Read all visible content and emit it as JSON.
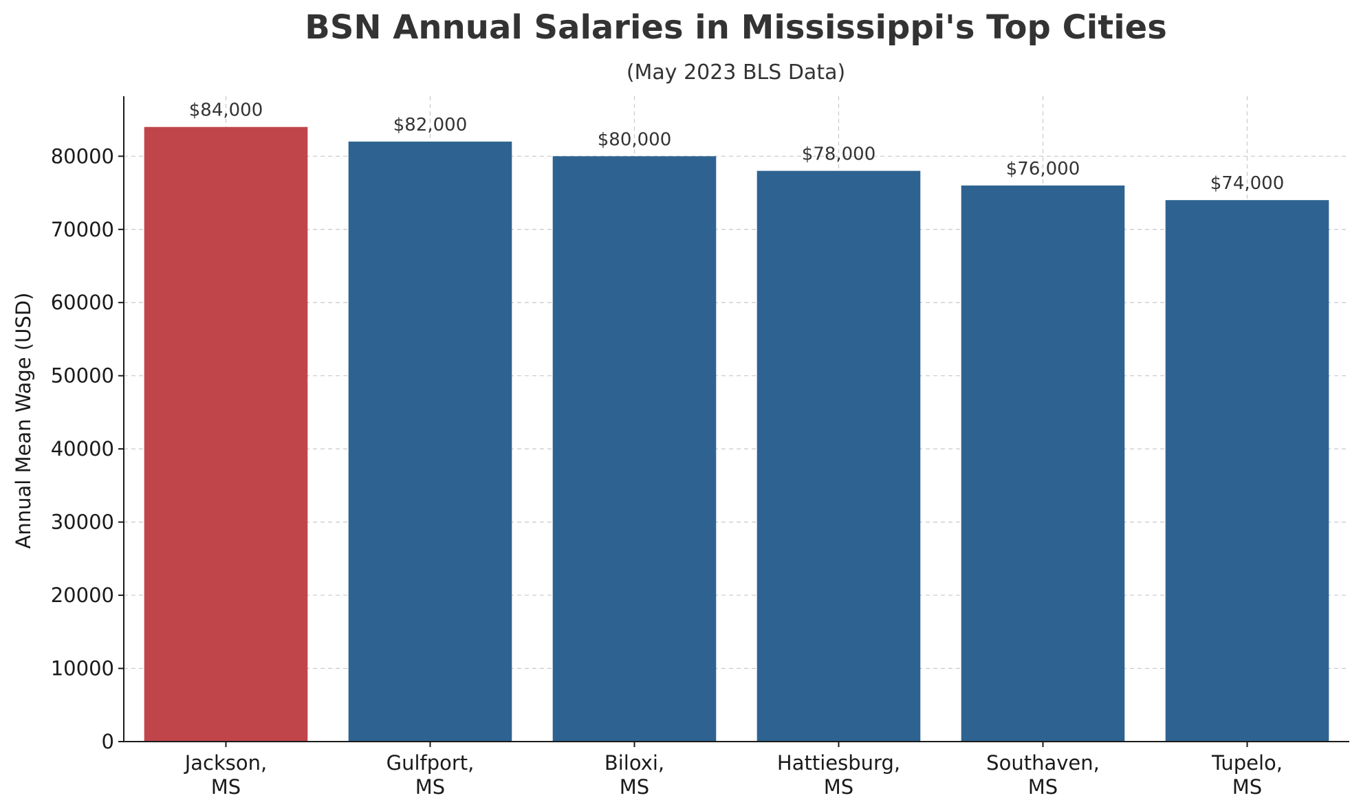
{
  "chart_data": {
    "type": "bar",
    "title": "BSN Annual Salaries in Mississippi's Top Cities",
    "subtitle": "(May 2023 BLS Data)",
    "xlabel": "",
    "ylabel": "Annual Mean Wage (USD)",
    "ylim": [
      0,
      88200
    ],
    "yticks": [
      0,
      10000,
      20000,
      30000,
      40000,
      50000,
      60000,
      70000,
      80000
    ],
    "categories": [
      [
        "Jackson,",
        "MS"
      ],
      [
        "Gulfport,",
        "MS"
      ],
      [
        "Biloxi,",
        "MS"
      ],
      [
        "Hattiesburg,",
        "MS"
      ],
      [
        "Southaven,",
        "MS"
      ],
      [
        "Tupelo,",
        "MS"
      ]
    ],
    "values": [
      84000,
      82000,
      80000,
      78000,
      76000,
      74000
    ],
    "data_labels": [
      "$84,000",
      "$82,000",
      "$80,000",
      "$78,000",
      "$76,000",
      "$74,000"
    ],
    "bar_colors": [
      "#c0454a",
      "#2e6391",
      "#2e6391",
      "#2e6391",
      "#2e6391",
      "#2e6391"
    ],
    "grid": true,
    "legend": null
  }
}
